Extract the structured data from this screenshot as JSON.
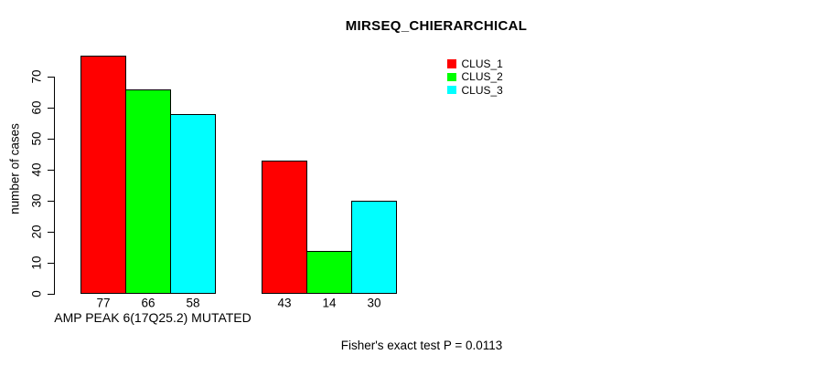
{
  "chart_data": {
    "type": "bar",
    "title": "MIRSEQ_CHIERARCHICAL",
    "ylabel": "number of cases",
    "xlabel": "AMP PEAK 6(17Q25.2) MUTATED",
    "annotation": "Fisher's exact test P = 0.0113",
    "ylim": [
      0,
      77
    ],
    "yticks": [
      0,
      10,
      20,
      30,
      40,
      50,
      60,
      70
    ],
    "grid": false,
    "legend_position": "top-right",
    "num_groups": 2,
    "series": [
      {
        "name": "CLUS_1",
        "color": "#ff0000",
        "values": [
          77,
          43
        ]
      },
      {
        "name": "CLUS_2",
        "color": "#00ff00",
        "values": [
          66,
          14
        ]
      },
      {
        "name": "CLUS_3",
        "color": "#00ffff",
        "values": [
          58,
          30
        ]
      }
    ],
    "bar_value_labels": [
      [
        77,
        66,
        58
      ],
      [
        43,
        14,
        30
      ]
    ],
    "axis_color": "#000000",
    "background_color": "#ffffff"
  }
}
